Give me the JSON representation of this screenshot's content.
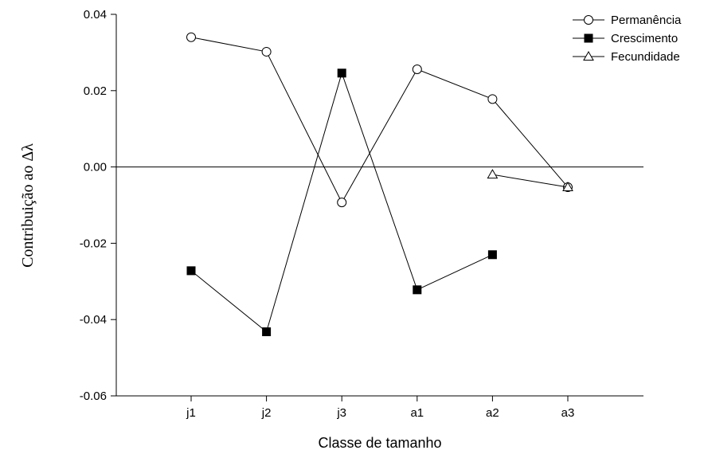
{
  "chart_data": {
    "type": "line",
    "categories": [
      "j1",
      "j2",
      "j3",
      "a1",
      "a2",
      "a3"
    ],
    "xlabel": "Classe de tamanho",
    "ylabel": "Contribuição ao Δλ",
    "ylim": [
      -0.06,
      0.04
    ],
    "yticks": [
      -0.06,
      -0.04,
      -0.02,
      0.0,
      0.02,
      0.04
    ],
    "ytick_labels": [
      "-0.06",
      "-0.04",
      "-0.02",
      "0.00",
      "0.02",
      "0.04"
    ],
    "reference_line": 0,
    "legend_position": "top-right",
    "grid": false,
    "series": [
      {
        "name": "Permanência",
        "marker": "circle-open",
        "values": [
          0.034,
          0.0302,
          -0.0093,
          0.0256,
          0.0178,
          -0.0053
        ]
      },
      {
        "name": "Crescimento",
        "marker": "square-filled",
        "values": [
          -0.0272,
          -0.0432,
          0.0246,
          -0.0322,
          -0.023,
          null
        ]
      },
      {
        "name": "Fecundidade",
        "marker": "triangle-open",
        "values": [
          null,
          null,
          null,
          null,
          -0.002,
          -0.0053
        ]
      }
    ]
  }
}
